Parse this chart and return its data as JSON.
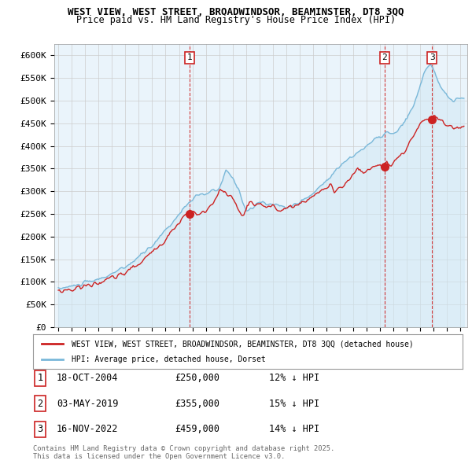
{
  "title1": "WEST VIEW, WEST STREET, BROADWINDSOR, BEAMINSTER, DT8 3QQ",
  "title2": "Price paid vs. HM Land Registry's House Price Index (HPI)",
  "ylim": [
    0,
    625000
  ],
  "yticks": [
    0,
    50000,
    100000,
    150000,
    200000,
    250000,
    300000,
    350000,
    400000,
    450000,
    500000,
    550000,
    600000
  ],
  "ytick_labels": [
    "£0",
    "£50K",
    "£100K",
    "£150K",
    "£200K",
    "£250K",
    "£300K",
    "£350K",
    "£400K",
    "£450K",
    "£500K",
    "£550K",
    "£600K"
  ],
  "xlim_start": 1994.7,
  "xlim_end": 2025.5,
  "hpi_color": "#7ab8d9",
  "hpi_fill_color": "#d0e8f5",
  "price_color": "#cc2222",
  "sale_dates": [
    2004.79,
    2019.33,
    2022.87
  ],
  "sale_labels": [
    "1",
    "2",
    "3"
  ],
  "sale_prices": [
    250000,
    355000,
    459000
  ],
  "sale_date_strs": [
    "18-OCT-2004",
    "03-MAY-2019",
    "16-NOV-2022"
  ],
  "sale_pct": [
    "12%",
    "15%",
    "14%"
  ],
  "legend_label_red": "WEST VIEW, WEST STREET, BROADWINDSOR, BEAMINSTER, DT8 3QQ (detached house)",
  "legend_label_blue": "HPI: Average price, detached house, Dorset",
  "footnote": "Contains HM Land Registry data © Crown copyright and database right 2025.\nThis data is licensed under the Open Government Licence v3.0.",
  "background_color": "#ffffff",
  "grid_color": "#cccccc",
  "chart_bg_color": "#eaf4fb"
}
